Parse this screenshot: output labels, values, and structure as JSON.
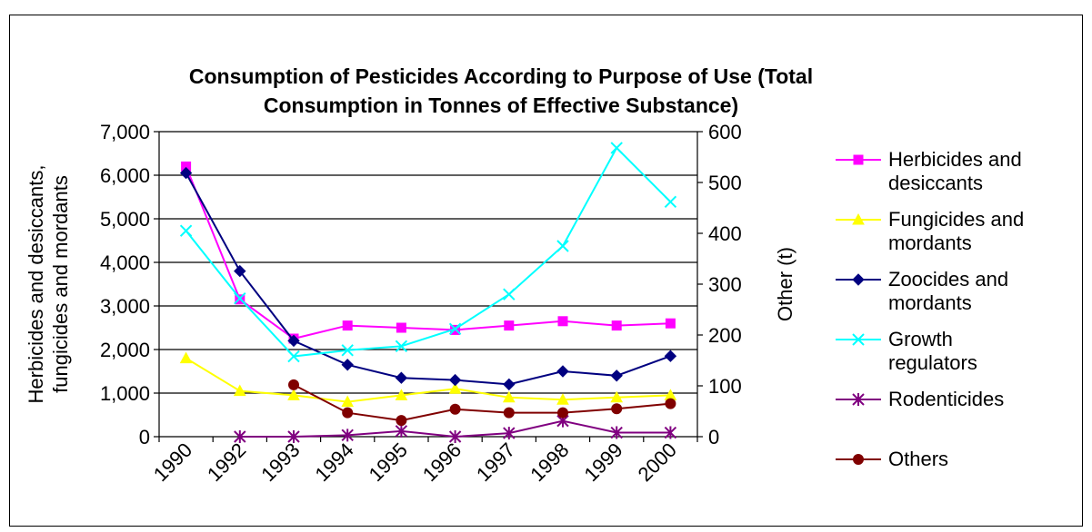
{
  "chart_data": {
    "type": "line",
    "title_lines": [
      "Consumption of Pesticides According to Purpose of Use (Total",
      "Consumption in Tonnes of Effective Substance)"
    ],
    "ylabel_lines": [
      "Herbicides and desiccants,",
      "fungicides and mordants"
    ],
    "y2label": "Other (t)",
    "categories": [
      "1990",
      "1992",
      "1993",
      "1994",
      "1995",
      "1996",
      "1997",
      "1998",
      "1999",
      "2000"
    ],
    "ylim": [
      0,
      7000
    ],
    "y2lim": [
      0,
      600
    ],
    "yticks": [
      "0",
      "1,000",
      "2,000",
      "3,000",
      "4,000",
      "5,000",
      "6,000",
      "7,000"
    ],
    "y2ticks": [
      "0",
      "100",
      "200",
      "300",
      "400",
      "500",
      "600"
    ],
    "grid": true,
    "legend_position": "right",
    "series": [
      {
        "name": "Herbicides and desiccants",
        "legend_lines": [
          "Herbicides and",
          "desiccants"
        ],
        "axis": "left",
        "color": "#ff00ff",
        "marker": "square",
        "values": [
          6200,
          3150,
          2250,
          2550,
          2500,
          2450,
          2550,
          2650,
          2550,
          2600
        ]
      },
      {
        "name": "Fungicides and mordants",
        "legend_lines": [
          "Fungicides and",
          "mordants"
        ],
        "axis": "left",
        "color": "#ffff00",
        "marker": "triangle",
        "values": [
          1800,
          1050,
          950,
          800,
          950,
          1100,
          900,
          850,
          900,
          950
        ]
      },
      {
        "name": "Zoocides and mordants",
        "legend_lines": [
          "Zoocides and",
          "mordants"
        ],
        "axis": "left",
        "color": "#000080",
        "marker": "diamond",
        "values": [
          6050,
          3800,
          2200,
          1650,
          1350,
          1300,
          1200,
          1500,
          1400,
          1850
        ]
      },
      {
        "name": "Growth regulators",
        "legend_lines": [
          "Growth",
          "regulators"
        ],
        "axis": "right",
        "color": "#00ffff",
        "marker": "x",
        "values": [
          405,
          272,
          158,
          170,
          178,
          212,
          280,
          375,
          568,
          462
        ]
      },
      {
        "name": "Rodenticides",
        "legend_lines": [
          "Rodenticides"
        ],
        "axis": "right",
        "color": "#800080",
        "marker": "star",
        "values": [
          null,
          0,
          0,
          3,
          11,
          0,
          7,
          31,
          8,
          8
        ]
      },
      {
        "name": "Others",
        "legend_lines": [
          "Others"
        ],
        "axis": "right",
        "color": "#800000",
        "marker": "circle",
        "values": [
          null,
          null,
          102,
          47,
          32,
          54,
          47,
          47,
          55,
          65
        ]
      }
    ]
  }
}
